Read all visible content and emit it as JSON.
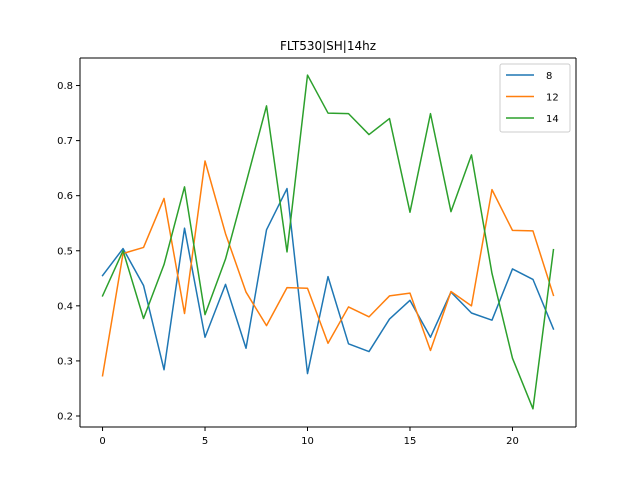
{
  "chart_data": {
    "type": "line",
    "title": "FLT530|SH|14hz",
    "xlabel": "",
    "ylabel": "",
    "xlim": [
      -1.1,
      23.1
    ],
    "ylim": [
      0.18,
      0.85
    ],
    "x_ticks": [
      0,
      5,
      10,
      15,
      20
    ],
    "y_ticks": [
      0.2,
      0.3,
      0.4,
      0.5,
      0.6,
      0.7,
      0.8
    ],
    "grid": false,
    "legend_position": "top-right",
    "x": [
      0,
      1,
      2,
      3,
      4,
      5,
      6,
      7,
      8,
      9,
      10,
      11,
      12,
      13,
      14,
      15,
      16,
      17,
      18,
      19,
      20,
      21,
      22
    ],
    "series": [
      {
        "name": "8",
        "color": "#1f77b4",
        "values": [
          0.455,
          0.504,
          0.437,
          0.284,
          0.541,
          0.343,
          0.439,
          0.323,
          0.538,
          0.613,
          0.277,
          0.453,
          0.331,
          0.317,
          0.376,
          0.41,
          0.343,
          0.425,
          0.387,
          0.374,
          0.467,
          0.448,
          0.358
        ]
      },
      {
        "name": "12",
        "color": "#ff7f0e",
        "values": [
          0.273,
          0.495,
          0.506,
          0.595,
          0.386,
          0.663,
          0.531,
          0.425,
          0.364,
          0.433,
          0.432,
          0.332,
          0.398,
          0.38,
          0.418,
          0.423,
          0.319,
          0.426,
          0.4,
          0.611,
          0.537,
          0.536,
          0.419
        ]
      },
      {
        "name": "14",
        "color": "#2ca02c",
        "values": [
          0.418,
          0.5,
          0.377,
          0.475,
          0.616,
          0.384,
          0.485,
          0.623,
          0.763,
          0.498,
          0.819,
          0.75,
          0.749,
          0.711,
          0.74,
          0.57,
          0.749,
          0.571,
          0.674,
          0.459,
          0.305,
          0.213,
          0.502
        ]
      }
    ]
  }
}
